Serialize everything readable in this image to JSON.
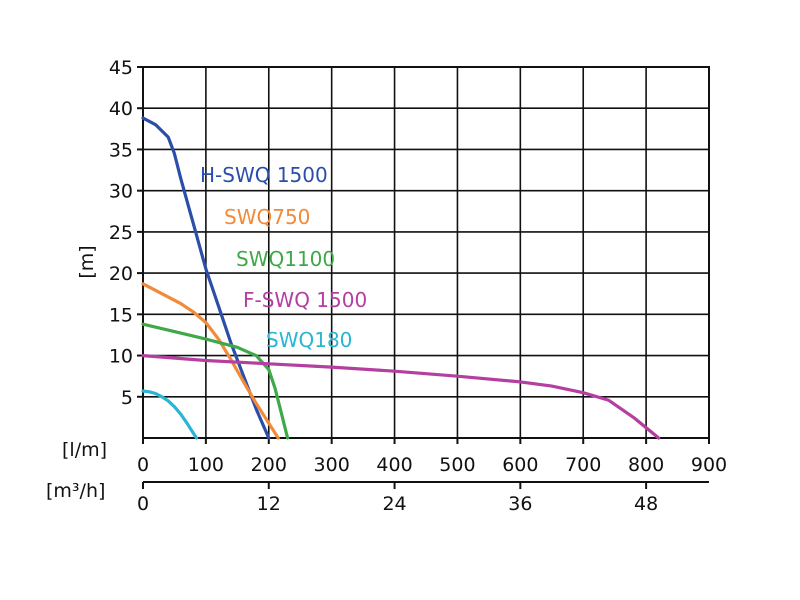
{
  "chart_data": {
    "type": "line",
    "ylabel": "[m]",
    "ylim": [
      0,
      45
    ],
    "yticks": [
      5,
      10,
      15,
      20,
      25,
      30,
      35,
      40,
      45
    ],
    "x_axes": [
      {
        "unit_label": "[l/m]",
        "xlim": [
          0,
          900
        ],
        "ticks": [
          0,
          100,
          200,
          300,
          400,
          500,
          600,
          700,
          800,
          900
        ]
      },
      {
        "unit_label": "[m³/h]",
        "xlim": [
          0,
          54
        ],
        "ticks": [
          0,
          12,
          24,
          36,
          48
        ]
      }
    ],
    "grid": true,
    "series": [
      {
        "name": "H-SWQ 1500",
        "color": "#2b4fa8",
        "x": [
          0,
          20,
          40,
          50,
          60,
          80,
          100,
          120,
          140,
          160,
          180,
          200
        ],
        "y": [
          38.8,
          38,
          36.5,
          34.5,
          31.5,
          26,
          20.5,
          16,
          11.5,
          7.5,
          3.5,
          0
        ]
      },
      {
        "name": "SWQ750",
        "color": "#f28a3a",
        "x": [
          0,
          30,
          60,
          80,
          100,
          120,
          140,
          160,
          180,
          200,
          215
        ],
        "y": [
          18.7,
          17.5,
          16.3,
          15.3,
          14,
          12,
          9.5,
          6.8,
          4.2,
          1.8,
          0
        ]
      },
      {
        "name": "SWQ1100",
        "color": "#3fa94a",
        "x": [
          0,
          50,
          100,
          150,
          180,
          200,
          210,
          220,
          230
        ],
        "y": [
          13.8,
          12.9,
          12,
          11,
          10,
          8.3,
          6,
          3,
          0
        ]
      },
      {
        "name": "F-SWQ 1500",
        "color": "#b43fa0",
        "x": [
          0,
          100,
          200,
          300,
          400,
          500,
          600,
          650,
          700,
          740,
          780,
          820
        ],
        "y": [
          10,
          9.4,
          9,
          8.6,
          8.1,
          7.5,
          6.8,
          6.3,
          5.5,
          4.6,
          2.5,
          0
        ]
      },
      {
        "name": "SWQ180",
        "color": "#2ab5d6",
        "x": [
          0,
          10,
          20,
          30,
          40,
          50,
          60,
          70,
          80,
          85
        ],
        "y": [
          5.7,
          5.6,
          5.4,
          5,
          4.5,
          3.8,
          2.9,
          1.8,
          0.6,
          0
        ]
      }
    ]
  }
}
